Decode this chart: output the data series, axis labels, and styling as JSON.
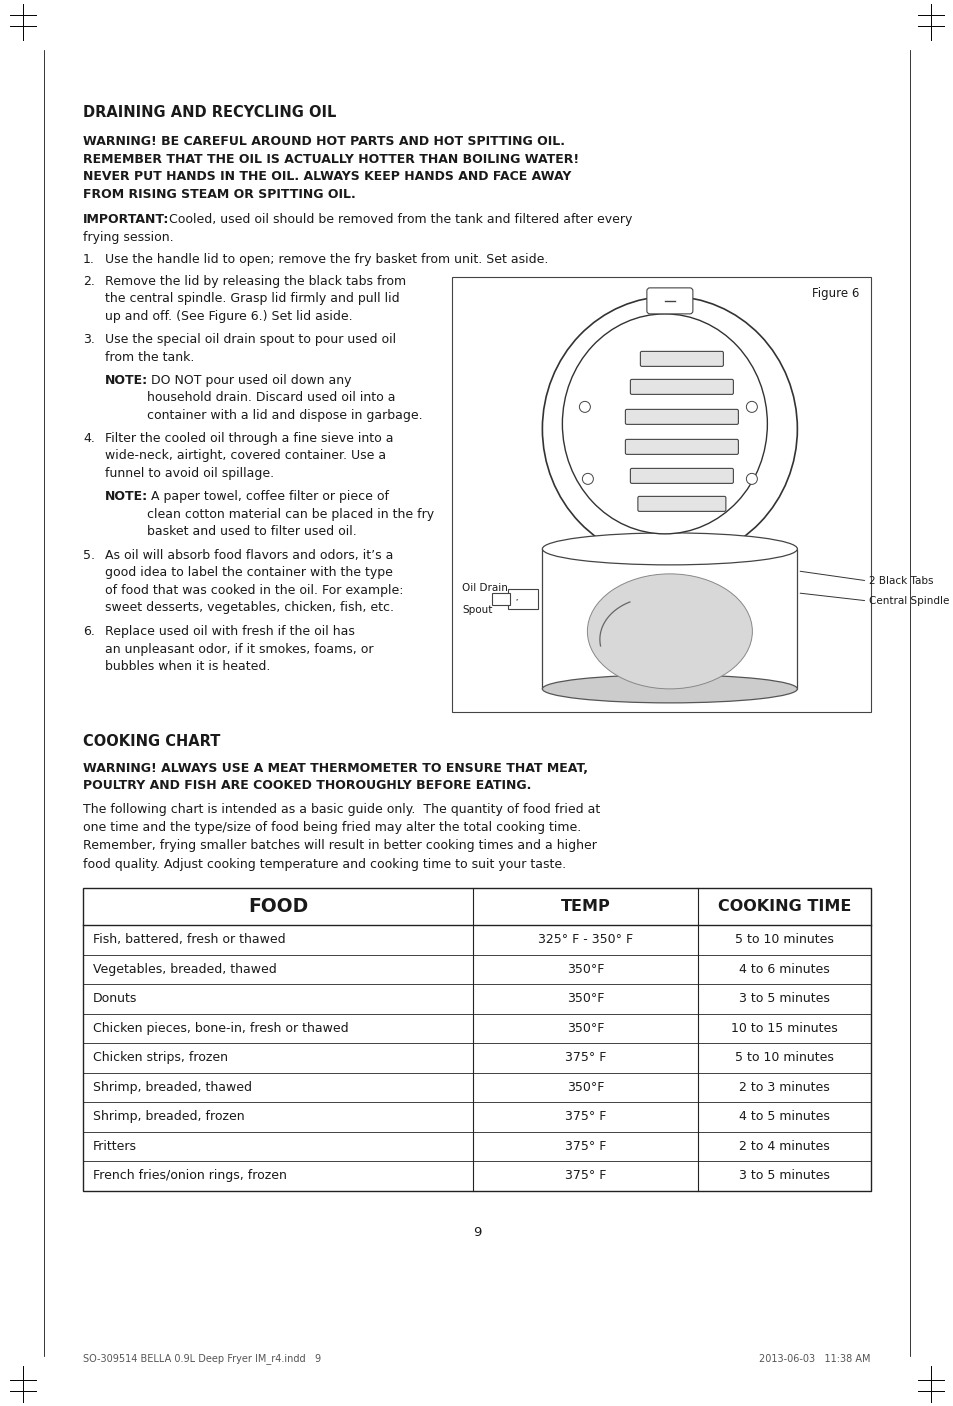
{
  "page_bg": "#ffffff",
  "page_width": 9.54,
  "page_height": 14.06,
  "text_color": "#1a1a1a",
  "section1_title": "DRAINING AND RECYCLING OIL",
  "warning_bold": "WARNING! BE CAREFUL AROUND HOT PARTS AND HOT SPITTING OIL.\nREMEMBER THAT THE OIL IS ACTUALLY HOTTER THAN BOILING WATER!\nNEVER PUT HANDS IN THE OIL. ALWAYS KEEP HANDS AND FACE AWAY\nFROM RISING STEAM OR SPITTING OIL.",
  "important_label": "IMPORTANT:",
  "important_text": " Cooled, used oil should be removed from the tank and filtered after every\nfrying session.",
  "step1": "Use the handle lid to open; remove the fry basket from unit. Set aside.",
  "step2": "Remove the lid by releasing the black tabs from\nthe central spindle. Grasp lid firmly and pull lid\nup and off. (See Figure 6.) Set lid aside.",
  "step3a": "Use the special oil drain spout to pour used oil\nfrom the tank.",
  "step3b_label": "NOTE:",
  "step3b_text": " DO NOT pour used oil down any\nhousehold drain. Discard used oil into a\ncontainer with a lid and dispose in garbage.",
  "step4a": "Filter the cooled oil through a fine sieve into a\nwide-neck, airtight, covered container. Use a\nfunnel to avoid oil spillage.",
  "step4b_label": "NOTE:",
  "step4b_text": " A paper towel, coffee filter or piece of\nclean cotton material can be placed in the fry\nbasket and used to filter used oil.",
  "step5": "As oil will absorb food flavors and odors, it’s a\ngood idea to label the container with the type\nof food that was cooked in the oil. For example:\nsweet desserts, vegetables, chicken, fish, etc.",
  "step6": "Replace used oil with fresh if the oil has\nan unpleasant odor, if it smokes, foams, or\nbubbles when it is heated.",
  "figure_label": "Figure 6",
  "label_2black": "2 Black Tabs",
  "label_central": "Central Spindle",
  "label_oildrain1": "Oil Drain",
  "label_oildrain2": "Spout",
  "section2_title": "COOKING CHART",
  "warning2_bold": "WARNING! ALWAYS USE A MEAT THERMOMETER TO ENSURE THAT MEAT,\nPOULTRY AND FISH ARE COOKED THOROUGHLY BEFORE EATING.",
  "chart_intro1": "The following chart is intended as a basic guide only.  The quantity of food fried at",
  "chart_intro2": "one time and the type/size of food being fried may alter the total cooking time.",
  "chart_intro3": "Remember, frying smaller batches will result in better cooking times and a higher",
  "chart_intro4": "food quality. Adjust cooking temperature and cooking time to suit your taste.",
  "table_headers": [
    "FOOD",
    "TEMP",
    "COOKING TIME"
  ],
  "table_rows": [
    [
      "Fish, battered, fresh or thawed",
      "325° F - 350° F",
      "5 to 10 minutes"
    ],
    [
      "Vegetables, breaded, thawed",
      "350°F",
      "4 to 6 minutes"
    ],
    [
      "Donuts",
      "350°F",
      "3 to 5 minutes"
    ],
    [
      "Chicken pieces, bone-in, fresh or thawed",
      "350°F",
      "10 to 15 minutes"
    ],
    [
      "Chicken strips, frozen",
      "375° F",
      "5 to 10 minutes"
    ],
    [
      "Shrimp, breaded, thawed",
      "350°F",
      "2 to 3 minutes"
    ],
    [
      "Shrimp, breaded, frozen",
      "375° F",
      "4 to 5 minutes"
    ],
    [
      "Fritters",
      "375° F",
      "2 to 4 minutes"
    ],
    [
      "French fries/onion rings, frozen",
      "375° F",
      "3 to 5 minutes"
    ]
  ],
  "page_number": "9",
  "footer_left": "SO-309514 BELLA 0.9L Deep Fryer IM_r4.indd   9",
  "footer_right": "2013-06-03   11:38 AM",
  "table_border_color": "#222222",
  "ml": 0.83,
  "mt": 1.05,
  "pw": 9.54,
  "ph": 14.06
}
